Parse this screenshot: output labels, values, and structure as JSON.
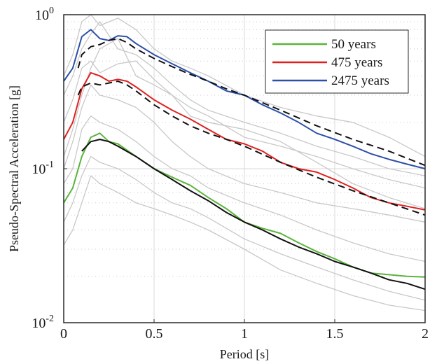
{
  "chart_data": {
    "type": "line",
    "xlabel": "Period [s]",
    "ylabel": "Pseudo-Spectral Acceleration [g]",
    "xlim": [
      0,
      2
    ],
    "ylim": [
      0.01,
      1
    ],
    "yscale": "log",
    "grid": true,
    "legend_position": "top-right",
    "x_ticks": [
      {
        "value": 0,
        "label": "0"
      },
      {
        "value": 0.5,
        "label": "0.5"
      },
      {
        "value": 1,
        "label": "1"
      },
      {
        "value": 1.5,
        "label": "1.5"
      },
      {
        "value": 2,
        "label": "2"
      }
    ],
    "y_ticks": [
      {
        "value": 0.01,
        "base": "10",
        "exp": "-2"
      },
      {
        "value": 0.1,
        "base": "10",
        "exp": "-1"
      },
      {
        "value": 1,
        "base": "10",
        "exp": "0"
      }
    ],
    "series": [
      {
        "name": "50 years",
        "color": "#5ab43c",
        "dash": "",
        "in_legend": true,
        "x": [
          0,
          0.05,
          0.1,
          0.15,
          0.2,
          0.25,
          0.3,
          0.4,
          0.5,
          0.6,
          0.7,
          0.8,
          0.9,
          1.0,
          1.1,
          1.2,
          1.3,
          1.4,
          1.5,
          1.6,
          1.7,
          1.8,
          1.9,
          2.0
        ],
        "y": [
          0.06,
          0.075,
          0.12,
          0.16,
          0.17,
          0.15,
          0.145,
          0.12,
          0.1,
          0.088,
          0.078,
          0.065,
          0.055,
          0.045,
          0.041,
          0.038,
          0.033,
          0.029,
          0.026,
          0.023,
          0.021,
          0.0205,
          0.02,
          0.0198
        ]
      },
      {
        "name": "475 years",
        "color": "#e02020",
        "dash": "",
        "in_legend": true,
        "x": [
          0,
          0.05,
          0.1,
          0.15,
          0.2,
          0.25,
          0.3,
          0.35,
          0.4,
          0.5,
          0.6,
          0.7,
          0.8,
          0.9,
          1.0,
          1.1,
          1.2,
          1.3,
          1.4,
          1.5,
          1.6,
          1.7,
          1.8,
          1.9,
          2.0
        ],
        "y": [
          0.155,
          0.2,
          0.33,
          0.42,
          0.4,
          0.37,
          0.38,
          0.37,
          0.34,
          0.28,
          0.24,
          0.21,
          0.18,
          0.155,
          0.145,
          0.13,
          0.11,
          0.1,
          0.095,
          0.085,
          0.075,
          0.065,
          0.06,
          0.057,
          0.054
        ]
      },
      {
        "name": "2475 years",
        "color": "#2c4fa8",
        "dash": "",
        "in_legend": true,
        "x": [
          0,
          0.05,
          0.1,
          0.15,
          0.2,
          0.25,
          0.3,
          0.35,
          0.4,
          0.5,
          0.6,
          0.7,
          0.8,
          0.9,
          1.0,
          1.1,
          1.2,
          1.3,
          1.4,
          1.5,
          1.6,
          1.7,
          1.8,
          1.9,
          2.0
        ],
        "y": [
          0.37,
          0.45,
          0.72,
          0.8,
          0.7,
          0.68,
          0.73,
          0.72,
          0.65,
          0.55,
          0.48,
          0.42,
          0.37,
          0.32,
          0.3,
          0.26,
          0.23,
          0.2,
          0.17,
          0.155,
          0.14,
          0.125,
          0.115,
          0.107,
          0.1
        ]
      },
      {
        "name": "",
        "color": "#111111",
        "dash": "10,6",
        "in_legend": false,
        "x": [
          0.08,
          0.1,
          0.15,
          0.2,
          0.25,
          0.3,
          0.35,
          0.4,
          0.5,
          0.6,
          0.7,
          0.8,
          0.9,
          1.0,
          1.2,
          1.4,
          1.6,
          1.8,
          2.0
        ],
        "y": [
          0.45,
          0.55,
          0.62,
          0.64,
          0.68,
          0.7,
          0.66,
          0.6,
          0.52,
          0.46,
          0.41,
          0.37,
          0.33,
          0.3,
          0.24,
          0.19,
          0.155,
          0.13,
          0.105
        ]
      },
      {
        "name": "",
        "color": "#111111",
        "dash": "10,6",
        "in_legend": false,
        "x": [
          0.08,
          0.1,
          0.15,
          0.2,
          0.25,
          0.3,
          0.35,
          0.4,
          0.5,
          0.6,
          0.7,
          0.8,
          0.9,
          1.0,
          1.2,
          1.4,
          1.6,
          1.8,
          2.0
        ],
        "y": [
          0.3,
          0.34,
          0.36,
          0.35,
          0.36,
          0.37,
          0.35,
          0.32,
          0.26,
          0.22,
          0.19,
          0.17,
          0.155,
          0.14,
          0.11,
          0.088,
          0.072,
          0.06,
          0.05
        ]
      },
      {
        "name": "",
        "color": "#111111",
        "dash": "",
        "in_legend": false,
        "x": [
          0.1,
          0.15,
          0.2,
          0.25,
          0.3,
          0.4,
          0.5,
          0.6,
          0.7,
          0.8,
          0.9,
          1.0,
          1.1,
          1.2,
          1.3,
          1.4,
          1.5,
          1.6,
          1.7,
          1.8,
          1.9,
          2.0
        ],
        "y": [
          0.13,
          0.15,
          0.155,
          0.15,
          0.14,
          0.12,
          0.1,
          0.085,
          0.072,
          0.062,
          0.052,
          0.045,
          0.04,
          0.035,
          0.031,
          0.028,
          0.025,
          0.023,
          0.021,
          0.019,
          0.018,
          0.0165
        ]
      },
      {
        "name": "",
        "color": "#c8c8c8",
        "dash": "",
        "in_legend": false,
        "x": [
          0,
          0.05,
          0.1,
          0.15,
          0.2,
          0.3,
          0.4,
          0.5,
          0.6,
          0.7,
          0.8,
          1.0,
          1.2,
          1.4,
          1.6,
          1.8,
          2.0
        ],
        "y": [
          0.4,
          0.55,
          0.9,
          1.0,
          0.85,
          0.95,
          0.8,
          0.6,
          0.5,
          0.45,
          0.4,
          0.3,
          0.25,
          0.22,
          0.2,
          0.16,
          0.12
        ]
      },
      {
        "name": "",
        "color": "#c8c8c8",
        "dash": "",
        "in_legend": false,
        "x": [
          0,
          0.05,
          0.1,
          0.15,
          0.2,
          0.3,
          0.4,
          0.5,
          0.6,
          0.7,
          0.8,
          1.0,
          1.2,
          1.4,
          1.6,
          1.8,
          2.0
        ],
        "y": [
          0.3,
          0.4,
          0.6,
          0.75,
          0.9,
          0.6,
          0.55,
          0.45,
          0.35,
          0.28,
          0.24,
          0.2,
          0.17,
          0.14,
          0.12,
          0.1,
          0.09
        ]
      },
      {
        "name": "",
        "color": "#c8c8c8",
        "dash": "",
        "in_legend": false,
        "x": [
          0,
          0.05,
          0.1,
          0.15,
          0.2,
          0.3,
          0.4,
          0.5,
          0.6,
          0.7,
          0.8,
          1.0,
          1.2,
          1.4,
          1.6,
          1.8,
          2.0
        ],
        "y": [
          0.2,
          0.28,
          0.45,
          0.5,
          0.42,
          0.48,
          0.5,
          0.38,
          0.3,
          0.25,
          0.22,
          0.16,
          0.14,
          0.12,
          0.1,
          0.085,
          0.075
        ]
      },
      {
        "name": "",
        "color": "#c8c8c8",
        "dash": "",
        "in_legend": false,
        "x": [
          0,
          0.05,
          0.1,
          0.15,
          0.2,
          0.3,
          0.4,
          0.5,
          0.6,
          0.7,
          0.8,
          1.0,
          1.2,
          1.4,
          1.6,
          1.8,
          2.0
        ],
        "y": [
          0.1,
          0.15,
          0.25,
          0.35,
          0.3,
          0.28,
          0.25,
          0.2,
          0.15,
          0.12,
          0.1,
          0.08,
          0.07,
          0.06,
          0.055,
          0.05,
          0.045
        ]
      },
      {
        "name": "",
        "color": "#c8c8c8",
        "dash": "",
        "in_legend": false,
        "x": [
          0,
          0.05,
          0.1,
          0.15,
          0.2,
          0.3,
          0.4,
          0.5,
          0.6,
          0.7,
          0.8,
          1.0,
          1.2,
          1.4,
          1.6,
          1.8,
          2.0
        ],
        "y": [
          0.08,
          0.1,
          0.18,
          0.22,
          0.2,
          0.18,
          0.15,
          0.12,
          0.1,
          0.09,
          0.075,
          0.06,
          0.05,
          0.04,
          0.033,
          0.028,
          0.025
        ]
      },
      {
        "name": "",
        "color": "#c8c8c8",
        "dash": "",
        "in_legend": false,
        "x": [
          0,
          0.05,
          0.1,
          0.15,
          0.2,
          0.3,
          0.4,
          0.5,
          0.6,
          0.7,
          0.8,
          1.0,
          1.2,
          1.4,
          1.6,
          1.8,
          2.0
        ],
        "y": [
          0.045,
          0.06,
          0.09,
          0.12,
          0.11,
          0.1,
          0.085,
          0.07,
          0.06,
          0.055,
          0.048,
          0.035,
          0.028,
          0.023,
          0.019,
          0.016,
          0.014
        ]
      },
      {
        "name": "",
        "color": "#c8c8c8",
        "dash": "",
        "in_legend": false,
        "x": [
          0,
          0.05,
          0.1,
          0.15,
          0.2,
          0.3,
          0.4,
          0.5,
          0.6,
          0.7,
          0.8,
          1.0,
          1.2,
          1.4,
          1.6,
          1.8,
          2.0
        ],
        "y": [
          0.032,
          0.04,
          0.06,
          0.09,
          0.08,
          0.07,
          0.06,
          0.055,
          0.05,
          0.045,
          0.04,
          0.03,
          0.022,
          0.018,
          0.015,
          0.013,
          0.012
        ]
      },
      {
        "name": "",
        "color": "#c8c8c8",
        "dash": "",
        "in_legend": false,
        "x": [
          0,
          0.05,
          0.1,
          0.15,
          0.2,
          0.3,
          0.4,
          0.5,
          0.6,
          0.7,
          0.8,
          1.0,
          1.2,
          1.4,
          1.6,
          1.8,
          2.0
        ],
        "y": [
          0.12,
          0.18,
          0.3,
          0.45,
          0.6,
          0.7,
          0.4,
          0.35,
          0.3,
          0.22,
          0.2,
          0.18,
          0.15,
          0.11,
          0.08,
          0.065,
          0.055
        ]
      }
    ]
  }
}
